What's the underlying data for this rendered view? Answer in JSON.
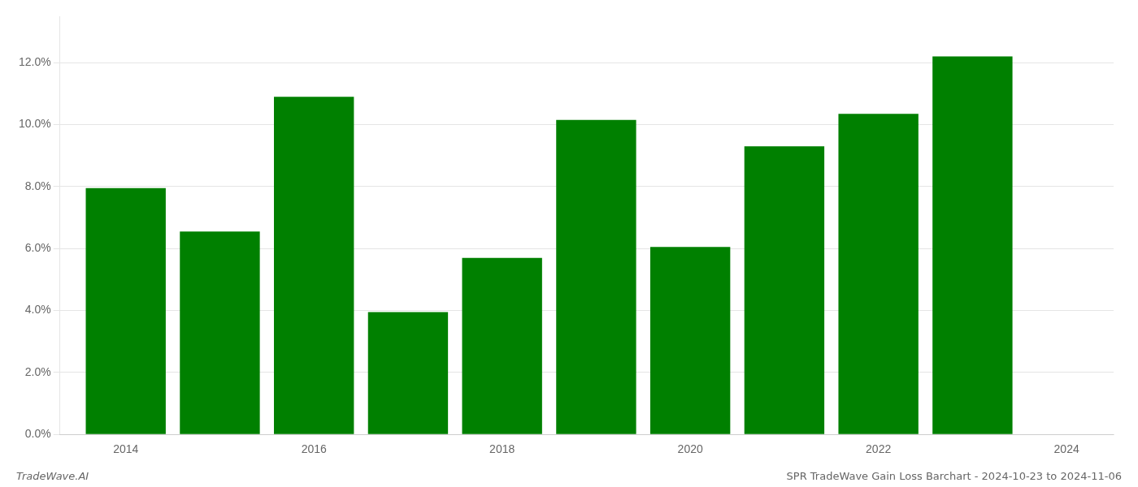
{
  "chart_data": {
    "type": "bar",
    "x": [
      2014,
      2015,
      2016,
      2017,
      2018,
      2019,
      2020,
      2021,
      2022,
      2023
    ],
    "values": [
      0.0795,
      0.0655,
      0.109,
      0.0395,
      0.057,
      0.1015,
      0.0605,
      0.093,
      0.1035,
      0.122
    ],
    "color": "#008000",
    "xlim": [
      2013.3,
      2024.5
    ],
    "xticks": [
      2014,
      2016,
      2018,
      2020,
      2022,
      2024
    ],
    "ylim": [
      0,
      0.135
    ],
    "yticks": [
      {
        "value": 0.0,
        "label": "0.0%"
      },
      {
        "value": 0.02,
        "label": "2.0%"
      },
      {
        "value": 0.04,
        "label": "4.0%"
      },
      {
        "value": 0.06,
        "label": "6.0%"
      },
      {
        "value": 0.08,
        "label": "8.0%"
      },
      {
        "value": 0.1,
        "label": "10.0%"
      },
      {
        "value": 0.12,
        "label": "12.0%"
      }
    ],
    "grid": "y",
    "annotations": [
      "TradeWave.AI",
      "SPR TradeWave Gain Loss Barchart - 2024-10-23 to 2024-11-06"
    ]
  }
}
